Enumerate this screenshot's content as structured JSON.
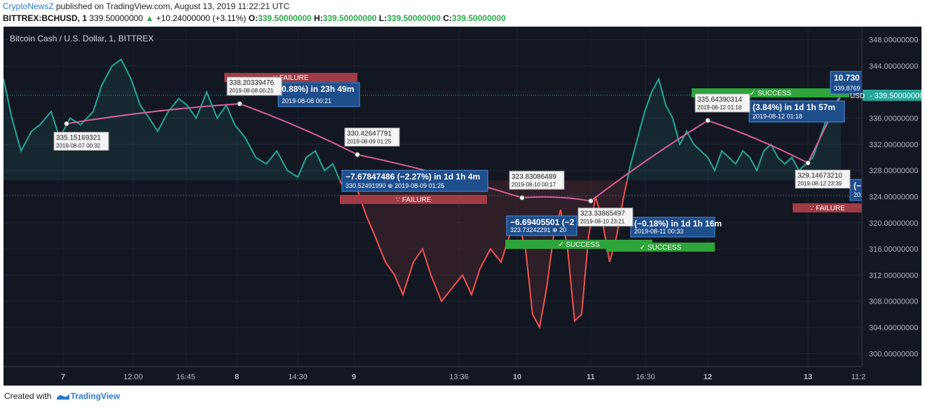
{
  "header": {
    "brand": "CryptoNewsZ",
    "published": "published on TradingView.com, August 13, 2019 11:22:21 UTC"
  },
  "ticker": {
    "symbol": "BITTREX:BCHUSD, 1",
    "price": "339.50000000",
    "change": "+10.24000000 (+3.11%)",
    "o_label": "O:",
    "o": "339.50000000",
    "h_label": "H:",
    "h": "339.50000000",
    "l_label": "L:",
    "l": "339.50000000",
    "c_label": "C:",
    "c": "339.50000000"
  },
  "footer": {
    "created": "Created with",
    "tv": "TradingView"
  },
  "chart_data": {
    "type": "line",
    "title": "Bitcoin Cash / U.S. Dollar, 1, BITTREX",
    "ylim": [
      298,
      350
    ],
    "yticks": [
      "348.00000000",
      "344.00000000",
      "340.00000000",
      "336.00000000",
      "332.00000000",
      "328.00000000",
      "324.00000000",
      "320.00000000",
      "316.00000000",
      "312.00000000",
      "308.00000000",
      "304.00000000",
      "300.00000000"
    ],
    "ytick_values": [
      348,
      344,
      340,
      336,
      332,
      328,
      324,
      320,
      316,
      312,
      308,
      304,
      300
    ],
    "xticks": [
      "7",
      "12:00",
      "16:45",
      "8",
      "14:30",
      "9",
      "13:36",
      "10",
      "11",
      "16:30",
      "12",
      "13",
      "11:2"
    ],
    "last_price_label": "339.50000000",
    "last_price": 339.5,
    "usd_label": "USD",
    "colors": {
      "up": "#26a69a",
      "down": "#ef5350",
      "path": "#d6609a",
      "label": "#2c73c6"
    },
    "series": [
      {
        "x": [
          0,
          12,
          25,
          40,
          52,
          68,
          80,
          95,
          110,
          128,
          140,
          155,
          168,
          182,
          195,
          208,
          220,
          235,
          250,
          262,
          275,
          290,
          305,
          318,
          330,
          345,
          360,
          375,
          390,
          405,
          420,
          432,
          445,
          458,
          470,
          482,
          495,
          505,
          518,
          530,
          545,
          558,
          570,
          585,
          598,
          610,
          625,
          640,
          655,
          668,
          680,
          695,
          710,
          722,
          735,
          745,
          755,
          765,
          775,
          785,
          795,
          805,
          815,
          825,
          835,
          845,
          855,
          865,
          875,
          885,
          895,
          905,
          915,
          925,
          935,
          945,
          955,
          965,
          975,
          985,
          995,
          1005,
          1015,
          1025,
          1035,
          1045,
          1055,
          1065,
          1075,
          1085,
          1095,
          1105,
          1115,
          1125,
          1135,
          1145,
          1155,
          1165,
          1175,
          1185,
          1195
        ],
        "values": [
          342,
          336,
          331,
          334,
          335,
          337,
          333,
          336,
          335,
          337,
          341,
          344,
          345,
          342,
          338,
          336,
          334,
          337,
          339,
          338,
          336,
          340,
          336,
          338,
          335,
          333,
          330,
          329,
          331,
          328,
          327,
          330,
          331,
          328,
          329,
          326,
          327,
          325,
          321,
          318,
          314,
          312,
          309,
          314,
          316,
          312,
          308,
          310,
          312,
          309,
          313,
          316,
          314,
          318,
          320,
          316,
          306,
          304,
          310,
          318,
          322,
          316,
          305,
          306,
          318,
          324,
          320,
          314,
          318,
          324,
          329,
          333,
          337,
          340,
          342,
          338,
          336,
          332,
          334,
          332,
          331,
          330,
          328,
          331,
          330,
          329,
          331,
          330,
          328,
          331,
          332,
          330,
          329,
          330,
          328,
          329,
          330,
          333,
          336,
          338,
          339.5
        ]
      }
    ],
    "annotations": [
      {
        "x": 90,
        "y": 335.15169321,
        "price": "335.15169321",
        "date": "2019-08-07 00:32"
      },
      {
        "x": 337,
        "y": 338.20339476,
        "price": "338.20339476",
        "date": "2019-08-08 00:21"
      },
      {
        "x": 505,
        "y": 330.42647791,
        "price": "330.42647791",
        "date": "2019-08-09 01:25"
      },
      {
        "x": 740,
        "y": 323.83086489,
        "price": "323.83086489",
        "date": "2019-08-10 00:17"
      },
      {
        "x": 838,
        "y": 323.33865497,
        "price": "323.33865497",
        "date": "2019-08-10 23:21"
      },
      {
        "x": 1005,
        "y": 335.64390314,
        "price": "335.64390314",
        "date": "2019-08-12 01:18"
      },
      {
        "x": 1148,
        "y": 329.1467321,
        "price": "329.14673210",
        "date": "2019-08-12 23:39"
      }
    ],
    "results": [
      {
        "text": "0.88%) in 23h 49m",
        "sub": "2019-08-08  00:21"
      },
      {
        "text": "−7.67847486 (−2.27%) in 1d 1h 4m",
        "sub_price": "330.52491990",
        "sub": "2019-08-09  01:25"
      },
      {
        "text": "−6.69405501 (−2",
        "sub_price": "323.73242291",
        "sub": "20"
      },
      {
        "text": "(−0.18%) in 1d 1h 16m",
        "sub": "2019-08-11  00:33"
      },
      {
        "text": "(3.84%) in 1d 1h 57m",
        "sub": "2019-08-12  01:18"
      },
      {
        "text": "10.730",
        "sub": "339.8769"
      },
      {
        "text": "(−1",
        "sub": "201"
      }
    ],
    "badges": {
      "failure": "FAILURE",
      "success": "SUCCESS"
    }
  }
}
